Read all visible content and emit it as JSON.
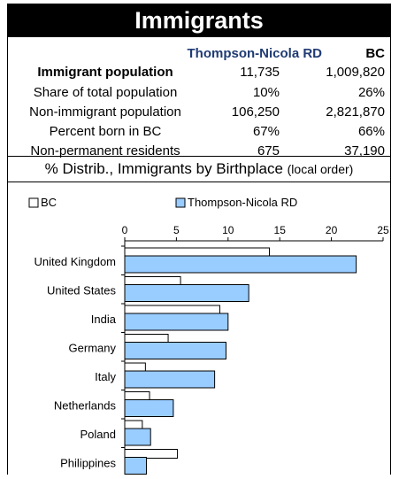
{
  "title": "Immigrants",
  "stats": {
    "col_local": "Thompson-Nicola RD",
    "col_bc": "BC",
    "rows": [
      {
        "label": "Immigrant population",
        "local": "11,735",
        "bc": "1,009,820",
        "bold": true
      },
      {
        "label": "Share of total population",
        "local": "10%",
        "bc": "26%",
        "bold": false
      },
      {
        "label": "Non-immigrant population",
        "local": "106,250",
        "bc": "2,821,870",
        "bold": false
      },
      {
        "label": "Percent born in BC",
        "local": "67%",
        "bc": "66%",
        "bold": false
      },
      {
        "label": "Non-permanent residents",
        "local": "675",
        "bc": "37,190",
        "bold": false
      }
    ]
  },
  "section": {
    "title": "% Distrib., Immigrants by Birthplace",
    "note": "(local order)"
  },
  "chart_data": {
    "type": "bar",
    "orientation": "horizontal",
    "categories": [
      "United Kingdom",
      "United States",
      "India",
      "Germany",
      "Italy",
      "Netherlands",
      "Poland",
      "Philippines"
    ],
    "series": [
      {
        "name": "BC",
        "color": "#ffffff",
        "values": [
          14.0,
          5.4,
          9.2,
          4.2,
          2.0,
          2.4,
          1.7,
          5.1
        ]
      },
      {
        "name": "Thompson-Nicola RD",
        "color": "#99ccff",
        "values": [
          22.4,
          12.0,
          10.0,
          9.8,
          8.7,
          4.7,
          2.5,
          2.1
        ]
      }
    ],
    "xlim": [
      0,
      25
    ],
    "xticks": [
      "0",
      "5",
      "10",
      "15",
      "20",
      "25"
    ],
    "legend_position": "top",
    "grid": false
  }
}
